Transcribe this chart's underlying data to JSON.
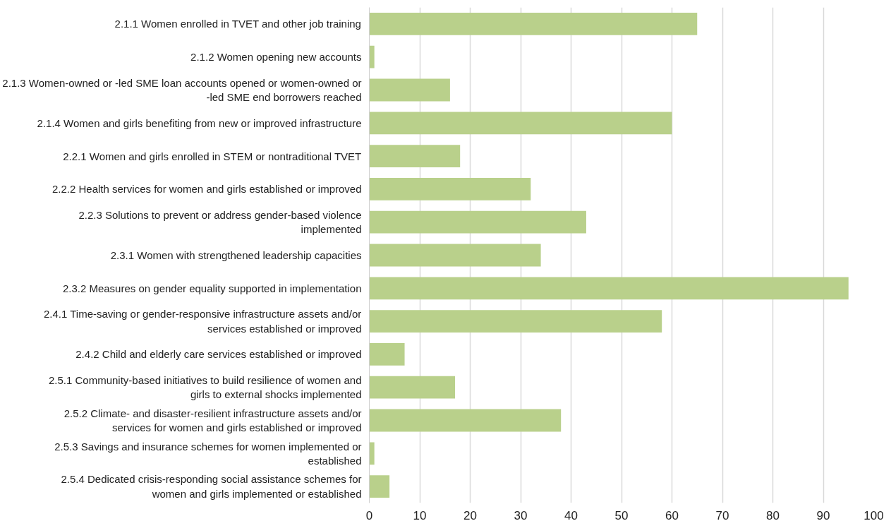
{
  "chart_data": {
    "type": "bar",
    "orientation": "horizontal",
    "categories": [
      "2.1.1 Women enrolled in TVET and other job training",
      "2.1.2 Women opening new accounts",
      "2.1.3 Women-owned or -led SME loan accounts opened or women-owned or -led SME end borrowers reached",
      "2.1.4 Women and girls benefiting from new or improved infrastructure",
      "2.2.1 Women and girls enrolled in STEM or nontraditional TVET",
      "2.2.2 Health services for women and girls established or improved",
      "2.2.3 Solutions to prevent or address gender-based violence implemented",
      "2.3.1 Women with strengthened leadership capacities",
      "2.3.2 Measures on gender equality supported in implementation",
      "2.4.1 Time-saving or gender-responsive infrastructure assets and/or services established or improved",
      "2.4.2 Child and elderly care services established or improved",
      "2.5.1 Community-based initiatives to build resilience of women and girls to external shocks implemented",
      "2.5.2 Climate- and disaster-resilient infrastructure assets and/or services for women and girls established or improved",
      "2.5.3 Savings and insurance schemes for women implemented or established",
      "2.5.4 Dedicated crisis-responding social assistance schemes for women and girls implemented or established"
    ],
    "values": [
      65,
      1,
      16,
      60,
      18,
      32,
      43,
      34,
      95,
      58,
      7,
      17,
      38,
      1,
      4
    ],
    "color": "#b9d08b",
    "xlim": [
      0,
      100
    ],
    "xticks": [
      0,
      10,
      20,
      30,
      40,
      50,
      60,
      70,
      80,
      90,
      100
    ],
    "grid": "x"
  }
}
